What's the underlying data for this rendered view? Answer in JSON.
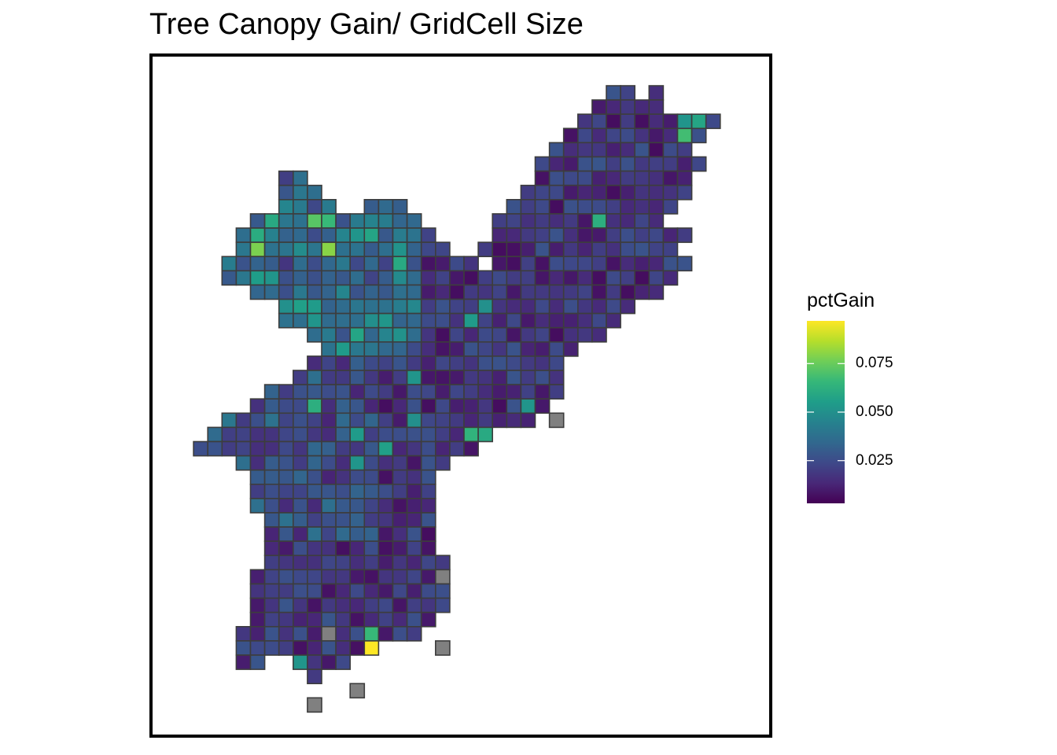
{
  "title": "Tree Canopy Gain/ GridCell Size",
  "legend": {
    "title": "pctGain",
    "ticks": [
      {
        "value": 0.075,
        "label": "0.075"
      },
      {
        "value": 0.05,
        "label": "0.050"
      },
      {
        "value": 0.025,
        "label": "0.025"
      }
    ],
    "range": [
      0.003,
      0.097
    ],
    "palette": [
      "#440154",
      "#482878",
      "#3e4989",
      "#31688e",
      "#26828e",
      "#1f9e89",
      "#35b779",
      "#6ece58",
      "#b5de2b",
      "#fde725"
    ],
    "na_color": "#808080",
    "cell_border_color": "#3d3d3d"
  },
  "map_data": {
    "type": "choropleth-grid",
    "variable": "pctGain",
    "grid": {
      "cols": 41,
      "rows": 45
    },
    "rows": [
      {
        "row": 0,
        "spans": [
          [
            30,
            31
          ],
          [
            33,
            33
          ]
        ]
      },
      {
        "row": 1,
        "spans": [
          [
            29,
            33
          ]
        ]
      },
      {
        "row": 2,
        "spans": [
          [
            28,
            37
          ]
        ]
      },
      {
        "row": 3,
        "spans": [
          [
            27,
            36
          ]
        ]
      },
      {
        "row": 4,
        "spans": [
          [
            26,
            35
          ]
        ]
      },
      {
        "row": 5,
        "spans": [
          [
            25,
            36
          ]
        ]
      },
      {
        "row": 6,
        "spans": [
          [
            7,
            8
          ],
          [
            25,
            35
          ]
        ]
      },
      {
        "row": 7,
        "spans": [
          [
            7,
            9
          ],
          [
            24,
            35
          ]
        ]
      },
      {
        "row": 8,
        "spans": [
          [
            7,
            10
          ],
          [
            13,
            15
          ],
          [
            23,
            34
          ]
        ]
      },
      {
        "row": 9,
        "spans": [
          [
            5,
            16
          ],
          [
            22,
            33
          ]
        ]
      },
      {
        "row": 10,
        "spans": [
          [
            4,
            17
          ],
          [
            22,
            35
          ]
        ]
      },
      {
        "row": 11,
        "spans": [
          [
            4,
            18
          ],
          [
            21,
            34
          ]
        ]
      },
      {
        "row": 12,
        "spans": [
          [
            3,
            20
          ],
          [
            22,
            35
          ]
        ]
      },
      {
        "row": 13,
        "spans": [
          [
            3,
            21
          ],
          [
            21,
            34
          ]
        ]
      },
      {
        "row": 14,
        "spans": [
          [
            5,
            33
          ]
        ]
      },
      {
        "row": 15,
        "spans": [
          [
            7,
            31
          ]
        ]
      },
      {
        "row": 16,
        "spans": [
          [
            7,
            30
          ]
        ]
      },
      {
        "row": 17,
        "spans": [
          [
            9,
            29
          ]
        ]
      },
      {
        "row": 18,
        "spans": [
          [
            10,
            27
          ]
        ]
      },
      {
        "row": 19,
        "spans": [
          [
            9,
            26
          ]
        ]
      },
      {
        "row": 20,
        "spans": [
          [
            8,
            26
          ]
        ]
      },
      {
        "row": 21,
        "spans": [
          [
            6,
            26
          ]
        ]
      },
      {
        "row": 22,
        "spans": [
          [
            5,
            25
          ]
        ]
      },
      {
        "row": 23,
        "spans": [
          [
            3,
            24
          ]
        ]
      },
      {
        "row": 24,
        "spans": [
          [
            2,
            21
          ]
        ]
      },
      {
        "row": 25,
        "spans": [
          [
            1,
            20
          ]
        ]
      },
      {
        "row": 26,
        "spans": [
          [
            4,
            18
          ]
        ]
      },
      {
        "row": 27,
        "spans": [
          [
            5,
            17
          ]
        ]
      },
      {
        "row": 28,
        "spans": [
          [
            5,
            17
          ]
        ]
      },
      {
        "row": 29,
        "spans": [
          [
            5,
            17
          ]
        ]
      },
      {
        "row": 30,
        "spans": [
          [
            6,
            17
          ]
        ]
      },
      {
        "row": 31,
        "spans": [
          [
            6,
            17
          ]
        ]
      },
      {
        "row": 32,
        "spans": [
          [
            6,
            17
          ]
        ]
      },
      {
        "row": 33,
        "spans": [
          [
            6,
            18
          ]
        ]
      },
      {
        "row": 34,
        "spans": [
          [
            5,
            18
          ]
        ]
      },
      {
        "row": 35,
        "spans": [
          [
            5,
            18
          ]
        ]
      },
      {
        "row": 36,
        "spans": [
          [
            5,
            18
          ]
        ]
      },
      {
        "row": 37,
        "spans": [
          [
            5,
            17
          ]
        ]
      },
      {
        "row": 38,
        "spans": [
          [
            4,
            16
          ]
        ]
      },
      {
        "row": 39,
        "spans": [
          [
            4,
            13
          ]
        ]
      },
      {
        "row": 40,
        "spans": [
          [
            4,
            5
          ],
          [
            8,
            11
          ]
        ]
      },
      {
        "row": 41,
        "spans": [
          [
            9,
            9
          ]
        ]
      }
    ],
    "highlights": [
      {
        "col": 35,
        "row": 3,
        "value": 0.068
      },
      {
        "col": 36,
        "row": 2,
        "value": 0.058
      },
      {
        "col": 35,
        "row": 2,
        "value": 0.052
      },
      {
        "col": 29,
        "row": 9,
        "value": 0.062
      },
      {
        "col": 9,
        "row": 9,
        "value": 0.072
      },
      {
        "col": 10,
        "row": 9,
        "value": 0.066
      },
      {
        "col": 5,
        "row": 10,
        "value": 0.061
      },
      {
        "col": 5,
        "row": 11,
        "value": 0.078
      },
      {
        "col": 10,
        "row": 11,
        "value": 0.08
      },
      {
        "col": 6,
        "row": 9,
        "value": 0.06
      },
      {
        "col": 13,
        "row": 10,
        "value": 0.058
      },
      {
        "col": 12,
        "row": 10,
        "value": 0.052
      },
      {
        "col": 5,
        "row": 13,
        "value": 0.055
      },
      {
        "col": 6,
        "row": 13,
        "value": 0.052
      },
      {
        "col": 15,
        "row": 12,
        "value": 0.06
      },
      {
        "col": 8,
        "row": 15,
        "value": 0.056
      },
      {
        "col": 9,
        "row": 15,
        "value": 0.054
      },
      {
        "col": 7,
        "row": 15,
        "value": 0.05
      },
      {
        "col": 12,
        "row": 17,
        "value": 0.058
      },
      {
        "col": 11,
        "row": 18,
        "value": 0.054
      },
      {
        "col": 16,
        "row": 20,
        "value": 0.052
      },
      {
        "col": 9,
        "row": 22,
        "value": 0.062
      },
      {
        "col": 20,
        "row": 16,
        "value": 0.054
      },
      {
        "col": 21,
        "row": 15,
        "value": 0.05
      },
      {
        "col": 27,
        "row": 20,
        "value": 0.056
      },
      {
        "col": 24,
        "row": 22,
        "value": 0.052
      },
      {
        "col": 20,
        "row": 24,
        "value": 0.064
      },
      {
        "col": 21,
        "row": 24,
        "value": 0.06
      },
      {
        "col": 12,
        "row": 24,
        "value": 0.054
      },
      {
        "col": 14,
        "row": 25,
        "value": 0.056
      },
      {
        "col": 12,
        "row": 26,
        "value": 0.052
      },
      {
        "col": 16,
        "row": 23,
        "value": 0.05
      },
      {
        "col": 5,
        "row": 33,
        "value": 0.07
      },
      {
        "col": 13,
        "row": 38,
        "value": 0.066
      },
      {
        "col": 14,
        "row": 39,
        "value": 0.058
      },
      {
        "col": 16,
        "row": 40,
        "value": 0.06
      },
      {
        "col": 17,
        "row": 40,
        "value": 0.056
      },
      {
        "col": 18,
        "row": 40,
        "value": 0.052
      },
      {
        "col": 8,
        "row": 40,
        "value": 0.052
      },
      {
        "col": 13,
        "row": 39,
        "value": 0.097
      }
    ],
    "na_cells": [
      {
        "col": 26,
        "row": 23
      },
      {
        "col": 18,
        "row": 34
      },
      {
        "col": 10,
        "row": 38
      },
      {
        "col": 18,
        "row": 39
      },
      {
        "col": 12,
        "row": 42
      },
      {
        "col": 9,
        "row": 43
      }
    ]
  }
}
